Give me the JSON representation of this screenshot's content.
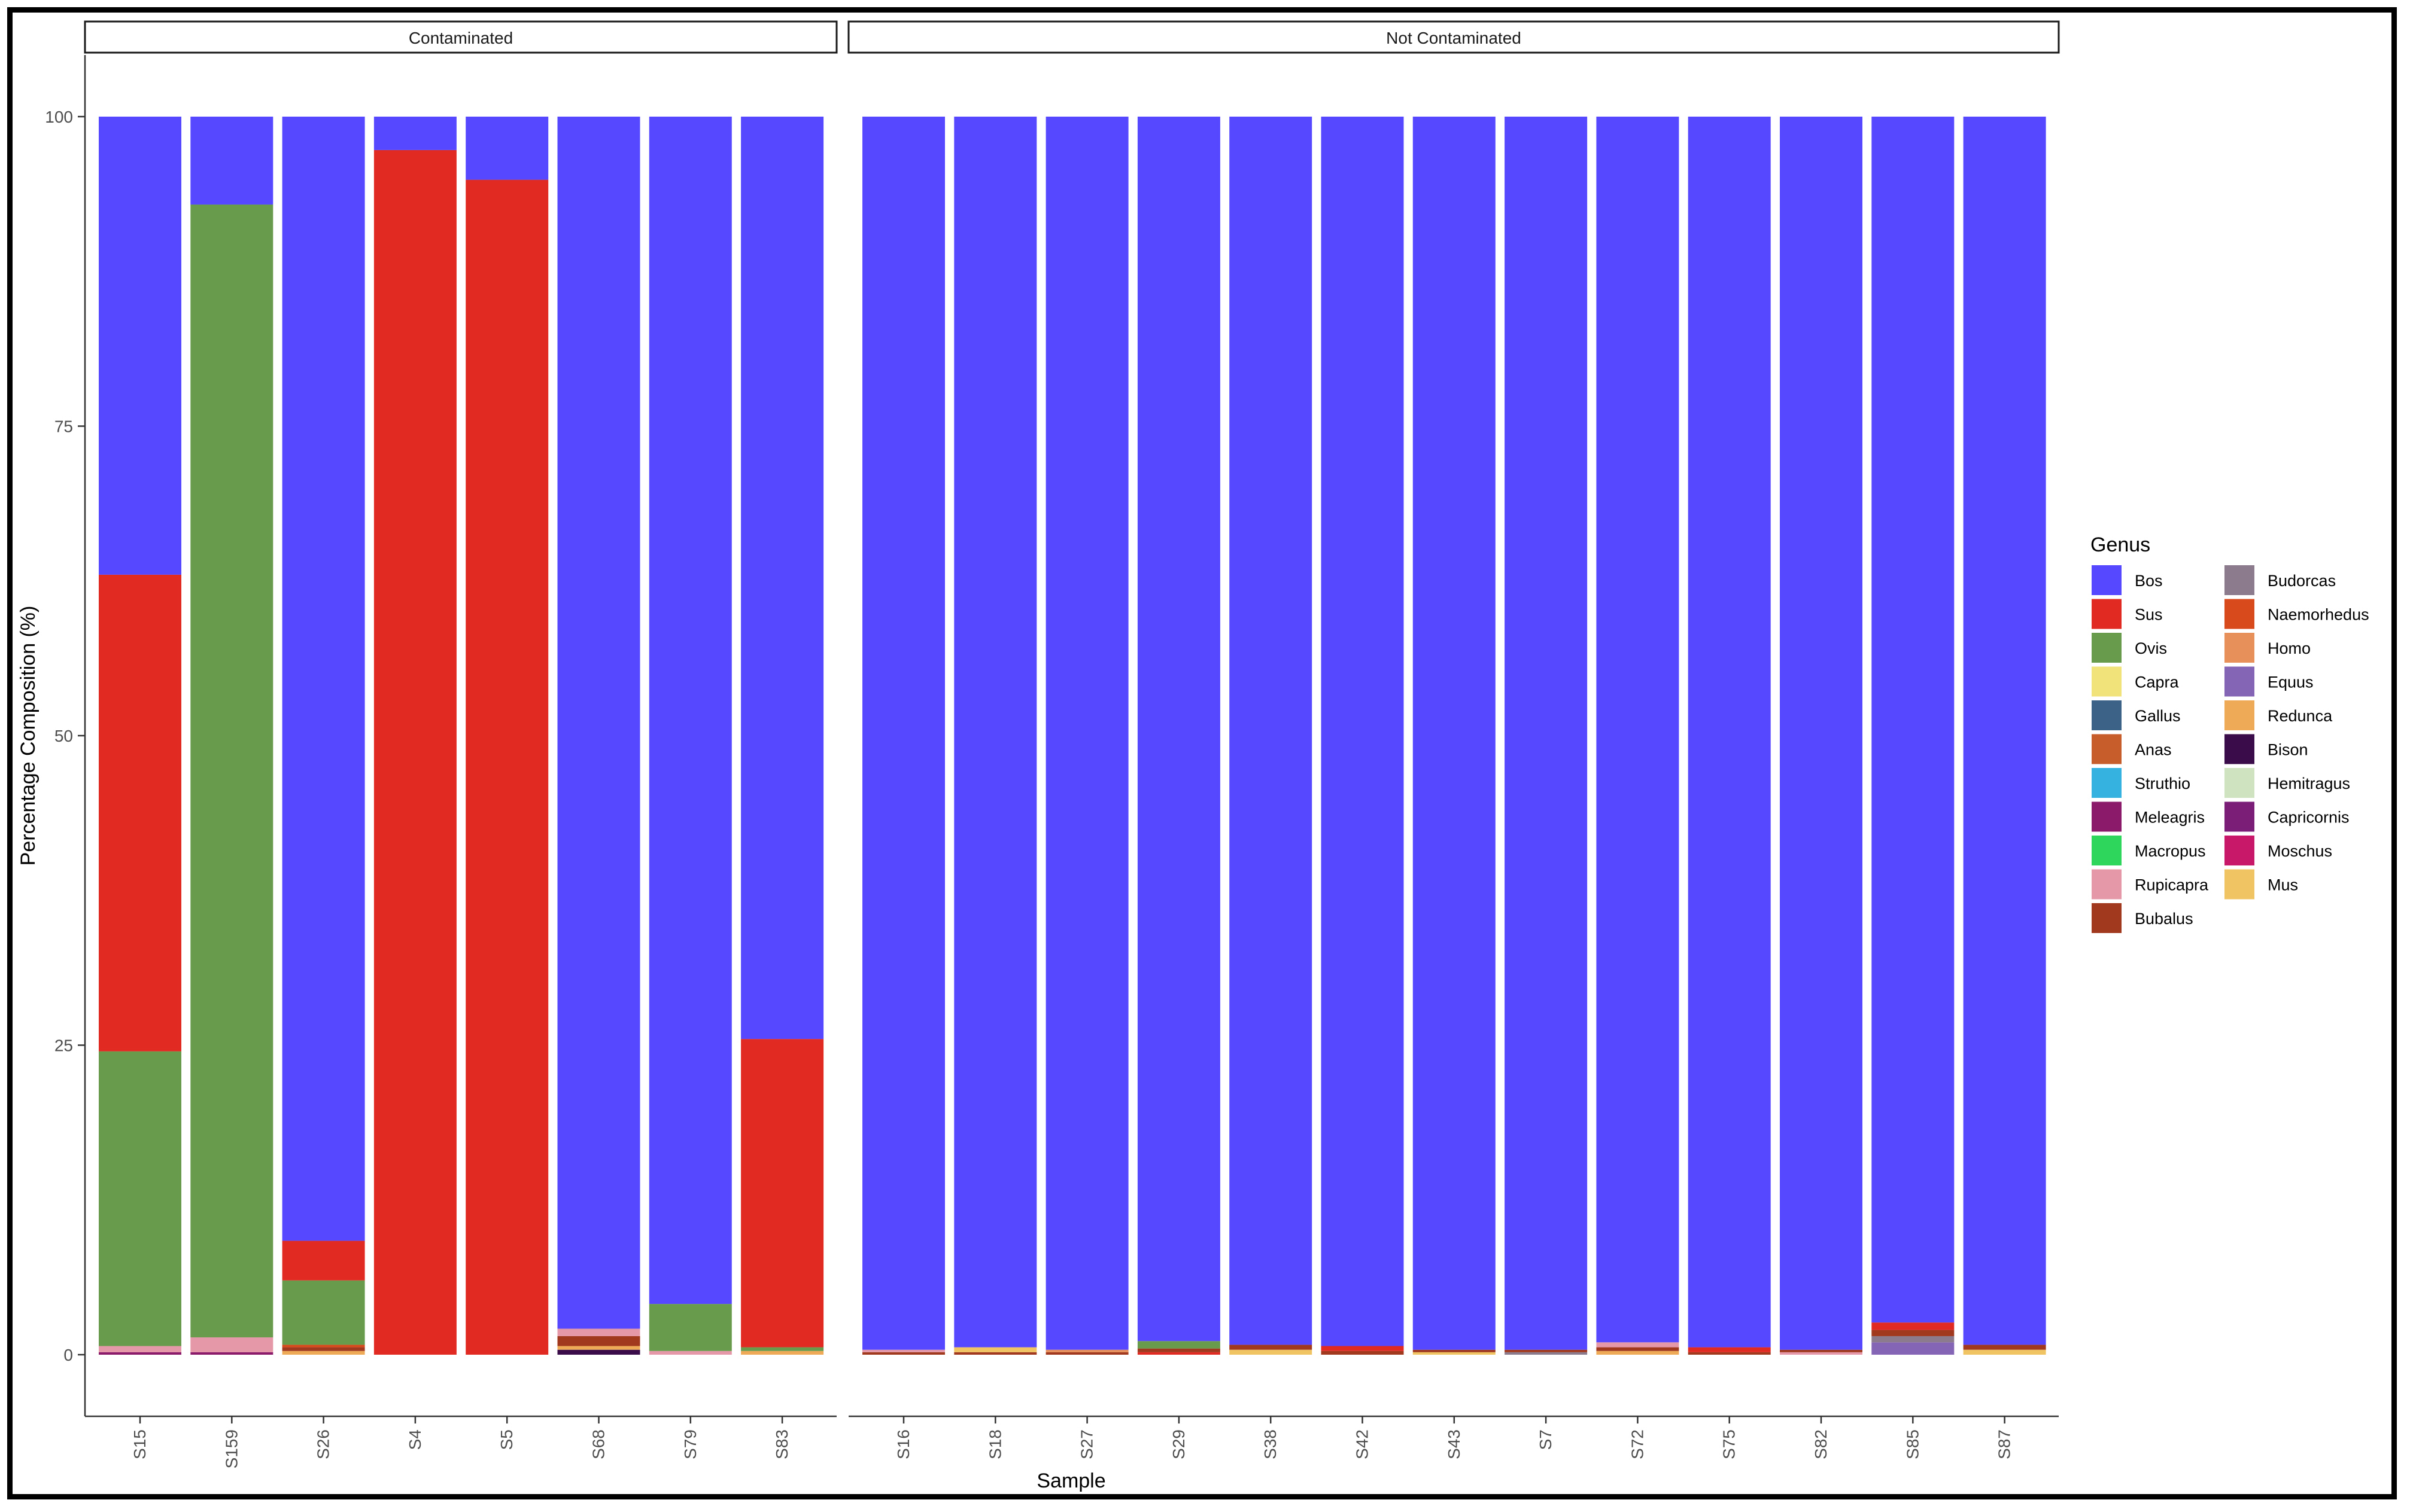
{
  "chart_data": {
    "type": "bar",
    "stacked": true,
    "title": "",
    "xlabel": "Sample",
    "ylabel": "Percentage Composition (%)",
    "ylim": [
      0,
      100
    ],
    "yticks": [
      0,
      25,
      50,
      75,
      100
    ],
    "grid": false,
    "legend": {
      "title": "Genus",
      "position": "right",
      "columns": 2
    },
    "genera": [
      {
        "name": "Bos",
        "color": "#5548FF"
      },
      {
        "name": "Sus",
        "color": "#E02A22"
      },
      {
        "name": "Ovis",
        "color": "#689B4B"
      },
      {
        "name": "Capra",
        "color": "#F2E27A"
      },
      {
        "name": "Gallus",
        "color": "#3D6288"
      },
      {
        "name": "Anas",
        "color": "#C75D2A"
      },
      {
        "name": "Struthio",
        "color": "#35B2E0"
      },
      {
        "name": "Meleagris",
        "color": "#8B1A6A"
      },
      {
        "name": "Macropus",
        "color": "#2ED65C"
      },
      {
        "name": "Rupicapra",
        "color": "#E598A8"
      },
      {
        "name": "Bubalus",
        "color": "#A0391E"
      },
      {
        "name": "Budorcas",
        "color": "#8C7B8C"
      },
      {
        "name": "Naemorhedus",
        "color": "#D84A1C"
      },
      {
        "name": "Homo",
        "color": "#E8905A"
      },
      {
        "name": "Equus",
        "color": "#8464B4"
      },
      {
        "name": "Redunca",
        "color": "#EFAA58"
      },
      {
        "name": "Bison",
        "color": "#3A0C4A"
      },
      {
        "name": "Hemitragus",
        "color": "#CFE3C0"
      },
      {
        "name": "Capricornis",
        "color": "#7B1E78"
      },
      {
        "name": "Moschus",
        "color": "#C8186A"
      },
      {
        "name": "Mus",
        "color": "#F0C462"
      }
    ],
    "facets": [
      {
        "label": "Contaminated",
        "samples": [
          {
            "name": "S15",
            "segments": [
              [
                "Meleagris",
                0.2
              ],
              [
                "Rupicapra",
                0.5
              ],
              [
                "Ovis",
                23.8
              ],
              [
                "Sus",
                38.5
              ],
              [
                "Bos",
                37.0
              ]
            ]
          },
          {
            "name": "S159",
            "segments": [
              [
                "Meleagris",
                0.2
              ],
              [
                "Rupicapra",
                1.2
              ],
              [
                "Ovis",
                91.5
              ],
              [
                "Bos",
                7.1
              ]
            ]
          },
          {
            "name": "S26",
            "segments": [
              [
                "Redunca",
                0.3
              ],
              [
                "Bubalus",
                0.3
              ],
              [
                "Naemorhedus",
                0.2
              ],
              [
                "Ovis",
                5.2
              ],
              [
                "Sus",
                3.2
              ],
              [
                "Bos",
                90.8
              ]
            ]
          },
          {
            "name": "S4",
            "segments": [
              [
                "Sus",
                97.3
              ],
              [
                "Bos",
                2.7
              ]
            ]
          },
          {
            "name": "S5",
            "segments": [
              [
                "Sus",
                94.9
              ],
              [
                "Bos",
                5.1
              ]
            ]
          },
          {
            "name": "S68",
            "segments": [
              [
                "Bison",
                0.4
              ],
              [
                "Redunca",
                0.3
              ],
              [
                "Bubalus",
                0.8
              ],
              [
                "Rupicapra",
                0.6
              ],
              [
                "Bos",
                97.9
              ]
            ]
          },
          {
            "name": "S79",
            "segments": [
              [
                "Rupicapra",
                0.3
              ],
              [
                "Ovis",
                3.8
              ],
              [
                "Bos",
                95.9
              ]
            ]
          },
          {
            "name": "S83",
            "segments": [
              [
                "Redunca",
                0.3
              ],
              [
                "Ovis",
                0.3
              ],
              [
                "Sus",
                24.9
              ],
              [
                "Bos",
                74.5
              ]
            ]
          }
        ]
      },
      {
        "label": "Not Contaminated",
        "samples": [
          {
            "name": "S16",
            "segments": [
              [
                "Bubalus",
                0.2
              ],
              [
                "Rupicapra",
                0.2
              ],
              [
                "Bos",
                99.6
              ]
            ]
          },
          {
            "name": "S18",
            "segments": [
              [
                "Bubalus",
                0.2
              ],
              [
                "Mus",
                0.4
              ],
              [
                "Bos",
                99.4
              ]
            ]
          },
          {
            "name": "S27",
            "segments": [
              [
                "Bubalus",
                0.2
              ],
              [
                "Homo",
                0.2
              ],
              [
                "Bos",
                99.6
              ]
            ]
          },
          {
            "name": "S29",
            "segments": [
              [
                "Sus",
                0.2
              ],
              [
                "Bubalus",
                0.3
              ],
              [
                "Ovis",
                0.6
              ],
              [
                "Bos",
                98.9
              ]
            ]
          },
          {
            "name": "S38",
            "segments": [
              [
                "Mus",
                0.4
              ],
              [
                "Bubalus",
                0.4
              ],
              [
                "Bos",
                99.2
              ]
            ]
          },
          {
            "name": "S42",
            "segments": [
              [
                "Bubalus",
                0.3
              ],
              [
                "Sus",
                0.4
              ],
              [
                "Bos",
                99.3
              ]
            ]
          },
          {
            "name": "S43",
            "segments": [
              [
                "Mus",
                0.2
              ],
              [
                "Bubalus",
                0.2
              ],
              [
                "Bos",
                99.6
              ]
            ]
          },
          {
            "name": "S7",
            "segments": [
              [
                "Budorcas",
                0.2
              ],
              [
                "Bubalus",
                0.2
              ],
              [
                "Bos",
                99.6
              ]
            ]
          },
          {
            "name": "S72",
            "segments": [
              [
                "Redunca",
                0.3
              ],
              [
                "Bubalus",
                0.3
              ],
              [
                "Rupicapra",
                0.4
              ],
              [
                "Bos",
                99.0
              ]
            ]
          },
          {
            "name": "S75",
            "segments": [
              [
                "Bubalus",
                0.2
              ],
              [
                "Sus",
                0.4
              ],
              [
                "Bos",
                99.4
              ]
            ]
          },
          {
            "name": "S82",
            "segments": [
              [
                "Rupicapra",
                0.2
              ],
              [
                "Bubalus",
                0.2
              ],
              [
                "Bos",
                99.6
              ]
            ]
          },
          {
            "name": "S85",
            "segments": [
              [
                "Equus",
                1.0
              ],
              [
                "Budorcas",
                0.5
              ],
              [
                "Bubalus",
                0.5
              ],
              [
                "Sus",
                0.6
              ],
              [
                "Bos",
                97.4
              ]
            ]
          },
          {
            "name": "S87",
            "segments": [
              [
                "Mus",
                0.4
              ],
              [
                "Bubalus",
                0.4
              ],
              [
                "Bos",
                99.2
              ]
            ]
          }
        ]
      }
    ]
  }
}
